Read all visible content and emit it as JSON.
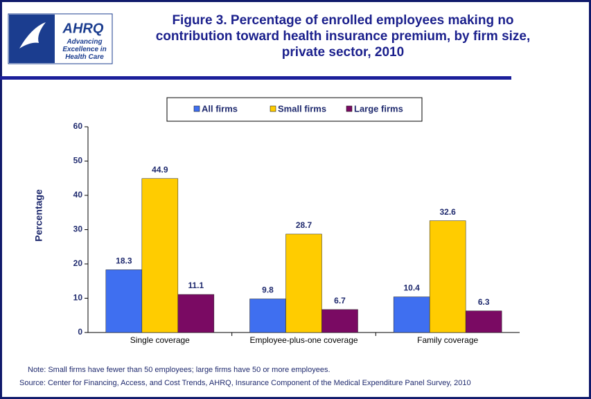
{
  "header": {
    "logo": "AHRQ",
    "tagline": "Advancing Excellence in Health Care"
  },
  "chart_data": {
    "type": "bar",
    "title": "Figure 3. Percentage of enrolled employees making no contribution toward health insurance premium, by firm size, private sector, 2010",
    "y_label": "Percentage",
    "categories": [
      "Single coverage",
      "Employee-plus-one coverage",
      "Family coverage"
    ],
    "series": [
      {
        "name": "All firms",
        "color": "#3f6ff0",
        "values": [
          18.3,
          9.8,
          10.4
        ]
      },
      {
        "name": "Small firms",
        "color": "#ffcc00",
        "values": [
          44.9,
          28.7,
          32.6
        ]
      },
      {
        "name": "Large firms",
        "color": "#7a0a63",
        "values": [
          11.1,
          6.7,
          6.3
        ]
      }
    ],
    "ylim": [
      0,
      60
    ],
    "yticks": [
      0,
      10,
      20,
      30,
      40,
      50,
      60
    ],
    "grid": false,
    "legend": "top"
  },
  "notes": [
    "Note: Small firms have fewer than 50 employees; large firms have 50 or more employees.",
    "Source: Center for Financing, Access, and Cost Trends, AHRQ, Insurance Component of the Medical Expenditure Panel Survey, 2010"
  ]
}
